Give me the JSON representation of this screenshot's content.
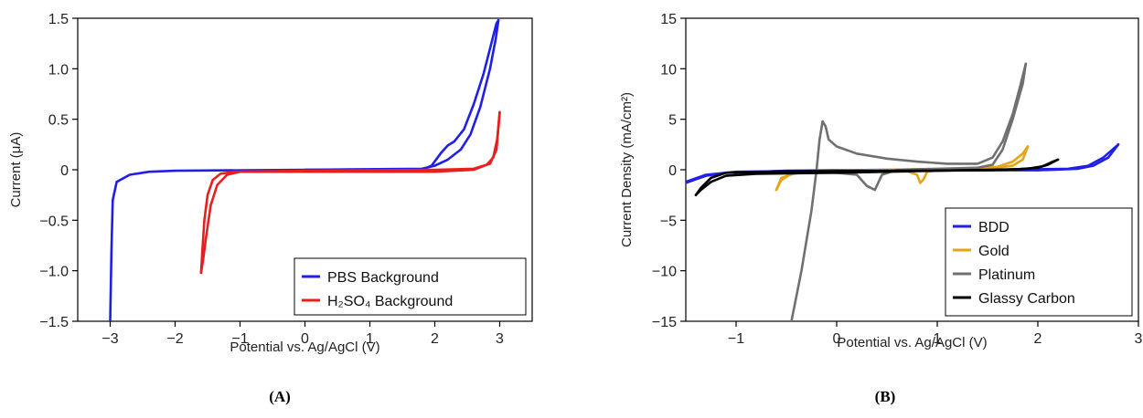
{
  "chart_data": [
    {
      "type": "line",
      "panel_label": "(A)",
      "xlabel": "Potential vs. Ag/AgCl (V)",
      "ylabel": "Current (μA)",
      "xlim": [
        -3.5,
        3.5
      ],
      "ylim": [
        -1.5,
        1.5
      ],
      "xticks": [
        -3,
        -2,
        -1,
        0,
        1,
        2,
        3
      ],
      "xtick_labels": [
        "−3",
        "−2",
        "−1",
        "0",
        "1",
        "2",
        "3"
      ],
      "yticks": [
        -1.5,
        -1.0,
        -0.5,
        0,
        0.5,
        1.0,
        1.5
      ],
      "ytick_labels": [
        "−1.5",
        "−1.0",
        "−0.5",
        "0",
        "0.5",
        "1.0",
        "1.5"
      ],
      "legend_position": "bottom-right",
      "series": [
        {
          "name": "PBS Background",
          "color": "#1f1fe8",
          "segments": [
            [
              [
                -3.0,
                -1.5
              ],
              [
                -2.98,
                -0.8
              ],
              [
                -2.96,
                -0.3
              ],
              [
                -2.9,
                -0.12
              ],
              [
                -2.7,
                -0.05
              ],
              [
                -2.4,
                -0.02
              ],
              [
                -2.0,
                -0.01
              ],
              [
                0,
                0
              ],
              [
                1.8,
                0
              ],
              [
                1.95,
                0.04
              ],
              [
                2.1,
                0.17
              ],
              [
                2.2,
                0.24
              ],
              [
                2.3,
                0.28
              ],
              [
                2.45,
                0.4
              ],
              [
                2.6,
                0.65
              ],
              [
                2.75,
                0.95
              ],
              [
                2.85,
                1.2
              ],
              [
                2.95,
                1.45
              ],
              [
                2.98,
                1.48
              ]
            ],
            [
              [
                2.98,
                1.48
              ],
              [
                2.94,
                1.3
              ],
              [
                2.85,
                1.0
              ],
              [
                2.7,
                0.62
              ],
              [
                2.55,
                0.35
              ],
              [
                2.4,
                0.2
              ],
              [
                2.2,
                0.1
              ],
              [
                2.0,
                0.04
              ],
              [
                1.8,
                0.01
              ],
              [
                0,
                0
              ]
            ]
          ]
        },
        {
          "name": "H₂SO₄ Background",
          "color": "#e81f1f",
          "segments": [
            [
              [
                -1.6,
                -1.02
              ],
              [
                -1.58,
                -0.8
              ],
              [
                -1.55,
                -0.5
              ],
              [
                -1.5,
                -0.25
              ],
              [
                -1.42,
                -0.1
              ],
              [
                -1.3,
                -0.04
              ],
              [
                -1.1,
                -0.02
              ],
              [
                0,
                -0.02
              ],
              [
                2.0,
                -0.02
              ],
              [
                2.6,
                0
              ],
              [
                2.8,
                0.05
              ],
              [
                2.9,
                0.12
              ],
              [
                2.96,
                0.3
              ],
              [
                3.0,
                0.57
              ]
            ],
            [
              [
                3.0,
                0.57
              ],
              [
                2.95,
                0.2
              ],
              [
                2.85,
                0.06
              ],
              [
                2.6,
                0.01
              ],
              [
                2.0,
                0
              ],
              [
                0,
                -0.01
              ],
              [
                -1.0,
                -0.02
              ],
              [
                -1.2,
                -0.05
              ],
              [
                -1.35,
                -0.15
              ],
              [
                -1.45,
                -0.35
              ],
              [
                -1.52,
                -0.65
              ],
              [
                -1.57,
                -0.9
              ],
              [
                -1.6,
                -1.02
              ]
            ]
          ]
        }
      ]
    },
    {
      "type": "line",
      "panel_label": "(B)",
      "xlabel": "Potential vs. Ag/AgCl (V)",
      "ylabel": "Current Density (mA/cm²)",
      "xlim": [
        -1.5,
        3.0
      ],
      "ylim": [
        -15,
        15
      ],
      "xticks": [
        -1,
        0,
        1,
        2,
        3
      ],
      "xtick_labels": [
        "−1",
        "0",
        "1",
        "2",
        "3"
      ],
      "yticks": [
        -15,
        -10,
        -5,
        0,
        5,
        10,
        15
      ],
      "ytick_labels": [
        "−15",
        "−10",
        "−5",
        "0",
        "5",
        "10",
        "15"
      ],
      "legend_position": "bottom-right",
      "series": [
        {
          "name": "BDD",
          "color": "#1f1fe8",
          "segments": [
            [
              [
                -1.5,
                -1.3
              ],
              [
                -1.3,
                -0.6
              ],
              [
                -1.1,
                -0.3
              ],
              [
                -0.5,
                -0.1
              ],
              [
                0.5,
                0
              ],
              [
                1.5,
                0
              ],
              [
                2.0,
                0.05
              ],
              [
                2.3,
                0.1
              ],
              [
                2.5,
                0.4
              ],
              [
                2.65,
                1.2
              ],
              [
                2.8,
                2.5
              ]
            ],
            [
              [
                2.8,
                2.5
              ],
              [
                2.7,
                1.2
              ],
              [
                2.55,
                0.4
              ],
              [
                2.4,
                0.1
              ],
              [
                2.0,
                -0.05
              ],
              [
                1.0,
                -0.05
              ],
              [
                0,
                -0.1
              ],
              [
                -1.0,
                -0.2
              ],
              [
                -1.3,
                -0.5
              ],
              [
                -1.5,
                -1.2
              ]
            ]
          ]
        },
        {
          "name": "Gold",
          "color": "#e6a417",
          "segments": [
            [
              [
                -0.6,
                -2.0
              ],
              [
                -0.55,
                -1.0
              ],
              [
                -0.45,
                -0.4
              ],
              [
                -0.2,
                -0.15
              ],
              [
                0.5,
                0
              ],
              [
                1.2,
                0.1
              ],
              [
                1.6,
                0.3
              ],
              [
                1.75,
                0.8
              ],
              [
                1.85,
                1.6
              ],
              [
                1.9,
                2.3
              ]
            ],
            [
              [
                1.9,
                2.3
              ],
              [
                1.85,
                1.0
              ],
              [
                1.75,
                0.4
              ],
              [
                1.5,
                0.1
              ],
              [
                1.0,
                0
              ],
              [
                0.9,
                -0.2
              ],
              [
                0.86,
                -1.0
              ],
              [
                0.83,
                -1.3
              ],
              [
                0.8,
                -0.5
              ],
              [
                0.7,
                -0.15
              ],
              [
                0,
                -0.2
              ],
              [
                -0.4,
                -0.3
              ],
              [
                -0.55,
                -0.8
              ],
              [
                -0.6,
                -2.0
              ]
            ]
          ]
        },
        {
          "name": "Platinum",
          "color": "#707070",
          "segments": [
            [
              [
                -0.45,
                -15.0
              ],
              [
                -0.35,
                -10.0
              ],
              [
                -0.25,
                -4.0
              ],
              [
                -0.2,
                0
              ],
              [
                -0.17,
                3.0
              ],
              [
                -0.14,
                4.8
              ],
              [
                -0.11,
                4.3
              ],
              [
                -0.08,
                3.0
              ],
              [
                0,
                2.3
              ],
              [
                0.2,
                1.6
              ],
              [
                0.5,
                1.1
              ],
              [
                0.8,
                0.8
              ],
              [
                1.1,
                0.6
              ],
              [
                1.4,
                0.6
              ],
              [
                1.55,
                1.2
              ],
              [
                1.65,
                2.8
              ],
              [
                1.75,
                5.5
              ],
              [
                1.83,
                8.5
              ],
              [
                1.88,
                10.5
              ]
            ],
            [
              [
                1.88,
                10.5
              ],
              [
                1.85,
                8.5
              ],
              [
                1.75,
                5.0
              ],
              [
                1.65,
                2.0
              ],
              [
                1.55,
                0.5
              ],
              [
                1.4,
                0.2
              ],
              [
                1.0,
                0.1
              ],
              [
                0.6,
                0
              ],
              [
                0.45,
                -0.5
              ],
              [
                0.38,
                -2.0
              ],
              [
                0.3,
                -1.6
              ],
              [
                0.2,
                -0.5
              ],
              [
                0,
                -0.3
              ],
              [
                -0.25,
                -0.2
              ]
            ]
          ]
        },
        {
          "name": "Glassy Carbon",
          "color": "#000000",
          "segments": [
            [
              [
                -1.4,
                -2.5
              ],
              [
                -1.35,
                -1.8
              ],
              [
                -1.25,
                -0.8
              ],
              [
                -1.1,
                -0.3
              ],
              [
                -0.5,
                -0.15
              ],
              [
                0.5,
                -0.1
              ],
              [
                1.5,
                -0.05
              ],
              [
                1.9,
                0.1
              ],
              [
                2.05,
                0.35
              ],
              [
                2.15,
                0.8
              ],
              [
                2.2,
                1.0
              ]
            ],
            [
              [
                2.2,
                1.0
              ],
              [
                2.1,
                0.5
              ],
              [
                2.0,
                0.2
              ],
              [
                1.8,
                0.05
              ],
              [
                1.0,
                -0.1
              ],
              [
                0,
                -0.3
              ],
              [
                -0.8,
                -0.4
              ],
              [
                -1.1,
                -0.6
              ],
              [
                -1.25,
                -1.2
              ],
              [
                -1.35,
                -2.0
              ],
              [
                -1.4,
                -2.5
              ]
            ]
          ]
        }
      ]
    }
  ]
}
